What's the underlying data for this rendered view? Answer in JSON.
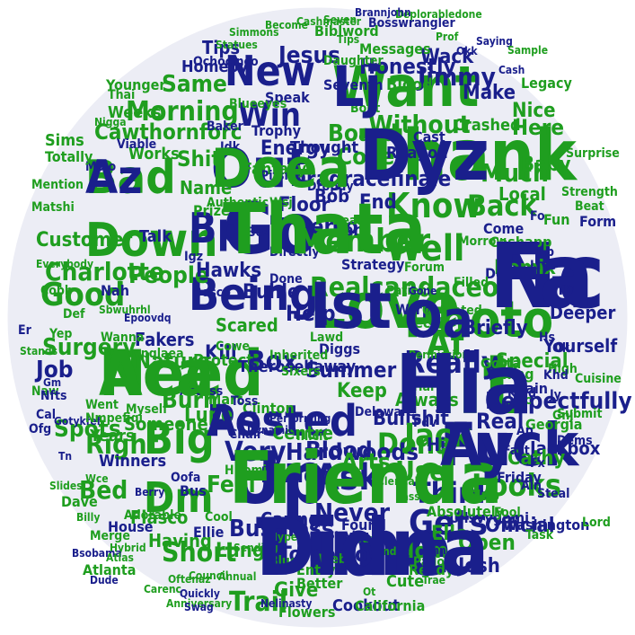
{
  "colors": {
    "background": "#ffffff",
    "disc": "#ecedf5",
    "green": "#1f9e1f",
    "blue": "#1a1f8c",
    "light_green": "#37a837",
    "light_blue": "#2b3296"
  },
  "words": [
    {
      "text": "Thank",
      "color": "green"
    },
    {
      "text": "Want",
      "color": "green"
    },
    {
      "text": "Love",
      "color": "green"
    },
    {
      "text": "Hit",
      "color": "green"
    },
    {
      "text": "Need",
      "color": "green"
    },
    {
      "text": "Time",
      "color": "blue"
    },
    {
      "text": "Up",
      "color": "blue"
    },
    {
      "text": "Go",
      "color": "blue"
    },
    {
      "text": "Out",
      "color": "blue"
    },
    {
      "text": "Nc",
      "color": "blue"
    },
    {
      "text": "Photo",
      "color": "green"
    },
    {
      "text": "Fuck",
      "color": "blue"
    },
    {
      "text": "Posted",
      "color": "blue"
    },
    {
      "text": "Bad",
      "color": "green"
    },
    {
      "text": "Down",
      "color": "green"
    },
    {
      "text": "Being",
      "color": "blue"
    },
    {
      "text": "Big",
      "color": "green"
    },
    {
      "text": "Dm",
      "color": "green"
    },
    {
      "text": "New",
      "color": "blue"
    },
    {
      "text": "Win",
      "color": "blue"
    },
    {
      "text": "Know",
      "color": "green"
    },
    {
      "text": "Member",
      "color": "green"
    },
    {
      "text": "Well",
      "color": "green"
    },
    {
      "text": "Back",
      "color": "green"
    },
    {
      "text": "Gets",
      "color": "blue"
    },
    {
      "text": "Ask",
      "color": "blue"
    },
    {
      "text": "Looks",
      "color": "green"
    },
    {
      "text": "Really",
      "color": "blue"
    },
    {
      "text": "Good",
      "color": "green"
    },
    {
      "text": "Charlotte",
      "color": "green"
    },
    {
      "text": "Morning",
      "color": "green"
    },
    {
      "text": "Jimmy",
      "color": "blue"
    },
    {
      "text": "Realcandaceo",
      "color": "green"
    },
    {
      "text": "Bp",
      "color": "blue"
    },
    {
      "text": "Job",
      "color": "blue"
    },
    {
      "text": "Box",
      "color": "blue"
    },
    {
      "text": "Think",
      "color": "blue"
    },
    {
      "text": "Use",
      "color": "green"
    },
    {
      "text": "Never",
      "color": "blue"
    },
    {
      "text": "Dona",
      "color": "green"
    },
    {
      "text": "Af",
      "color": "green"
    },
    {
      "text": "Very",
      "color": "blue"
    },
    {
      "text": "Short",
      "color": "green"
    },
    {
      "text": "Right",
      "color": "green"
    },
    {
      "text": "Bed",
      "color": "green"
    },
    {
      "text": "Trail",
      "color": "green"
    },
    {
      "text": "Tomorrow",
      "color": "blue"
    },
    {
      "text": "Without",
      "color": "green"
    },
    {
      "text": "Here",
      "color": "green"
    },
    {
      "text": "Much",
      "color": "green"
    },
    {
      "text": "Cove",
      "color": "green"
    },
    {
      "text": "Board",
      "color": "green"
    },
    {
      "text": "Same",
      "color": "green"
    },
    {
      "text": "Cawthornforc",
      "color": "green"
    },
    {
      "text": "People",
      "color": "green"
    },
    {
      "text": "Nature",
      "color": "green"
    },
    {
      "text": "Surgery",
      "color": "green"
    },
    {
      "text": "Hawks",
      "color": "blue"
    },
    {
      "text": "Buhle",
      "color": "blue"
    },
    {
      "text": "Business",
      "color": "blue"
    },
    {
      "text": "Hardwoods",
      "color": "blue"
    },
    {
      "text": "Bullshit",
      "color": "blue"
    },
    {
      "text": "Respectfully",
      "color": "blue"
    },
    {
      "text": "Open",
      "color": "green"
    },
    {
      "text": "Energy",
      "color": "blue"
    },
    {
      "text": "Jesus",
      "color": "blue"
    },
    {
      "text": "Honestly",
      "color": "blue"
    },
    {
      "text": "Make",
      "color": "blue"
    },
    {
      "text": "Wack",
      "color": "blue"
    },
    {
      "text": "Tips",
      "color": "blue"
    },
    {
      "text": "Shit",
      "color": "green"
    },
    {
      "text": "Works",
      "color": "green"
    },
    {
      "text": "Floor",
      "color": "blue"
    },
    {
      "text": "Person",
      "color": "blue"
    },
    {
      "text": "Help",
      "color": "blue"
    },
    {
      "text": "Scared",
      "color": "green"
    },
    {
      "text": "Fakers",
      "color": "blue"
    },
    {
      "text": "Feel",
      "color": "green"
    },
    {
      "text": "Burn",
      "color": "green"
    },
    {
      "text": "Someone",
      "color": "green"
    },
    {
      "text": "Spots",
      "color": "green"
    },
    {
      "text": "Daddy",
      "color": "blue"
    },
    {
      "text": "Blood",
      "color": "blue"
    },
    {
      "text": "Centre",
      "color": "green"
    },
    {
      "text": "Lungs",
      "color": "green"
    },
    {
      "text": "Mom",
      "color": "green"
    },
    {
      "text": "Elle",
      "color": "green"
    },
    {
      "text": "Josh",
      "color": "blue"
    },
    {
      "text": "Jackbox",
      "color": "blue"
    },
    {
      "text": "Cathy",
      "color": "green"
    },
    {
      "text": "Real",
      "color": "blue"
    },
    {
      "text": "Yourself",
      "color": "blue"
    },
    {
      "text": "Remix",
      "color": "green"
    },
    {
      "text": "Local",
      "color": "green"
    },
    {
      "text": "Baby",
      "color": "green"
    },
    {
      "text": "Nice",
      "color": "green"
    },
    {
      "text": "Name",
      "color": "green"
    },
    {
      "text": "Lupe",
      "color": "green"
    },
    {
      "text": "Fiasco",
      "color": "green"
    },
    {
      "text": "Having",
      "color": "green"
    },
    {
      "text": "Caring",
      "color": "blue"
    },
    {
      "text": "Give",
      "color": "green"
    },
    {
      "text": "Summer",
      "color": "blue"
    },
    {
      "text": "Keep",
      "color": "green"
    },
    {
      "text": "Always",
      "color": "green"
    },
    {
      "text": "Jack",
      "color": "green"
    },
    {
      "text": "Hi",
      "color": "blue"
    },
    {
      "text": "Arts",
      "color": "green"
    },
    {
      "text": "Official",
      "color": "blue"
    },
    {
      "text": "Kill",
      "color": "blue"
    },
    {
      "text": "Dragracefinale",
      "color": "blue"
    },
    {
      "text": "Bob",
      "color": "blue"
    },
    {
      "text": "End",
      "color": "blue"
    },
    {
      "text": "Briefly",
      "color": "blue"
    },
    {
      "text": "Special",
      "color": "green"
    },
    {
      "text": "Deeper",
      "color": "blue"
    },
    {
      "text": "Dnb",
      "color": "blue"
    },
    {
      "text": "Talk",
      "color": "blue"
    },
    {
      "text": "Customer",
      "color": "green"
    },
    {
      "text": "Prize",
      "color": "green"
    },
    {
      "text": "Fantasy",
      "color": "green"
    },
    {
      "text": "Speak",
      "color": "blue"
    },
    {
      "text": "Trophy",
      "color": "blue"
    },
    {
      "text": "Thought",
      "color": "blue"
    },
    {
      "text": "Ben",
      "color": "blue"
    },
    {
      "text": "Bout",
      "color": "green"
    },
    {
      "text": "Messages",
      "color": "green"
    },
    {
      "text": "Bosswrangler",
      "color": "blue"
    },
    {
      "text": "Biblword",
      "color": "green"
    },
    {
      "text": "Homeoy",
      "color": "blue"
    },
    {
      "text": "Legacy",
      "color": "green"
    },
    {
      "text": "Weeks",
      "color": "green"
    },
    {
      "text": "Sims",
      "color": "green"
    },
    {
      "text": "Younger",
      "color": "green"
    },
    {
      "text": "Protect",
      "color": "green"
    },
    {
      "text": "Therosellaway",
      "color": "blue"
    },
    {
      "text": "Atlanta",
      "color": "green"
    },
    {
      "text": "House",
      "color": "blue"
    },
    {
      "text": "Adorable",
      "color": "green"
    },
    {
      "text": "Winners",
      "color": "blue"
    },
    {
      "text": "Years",
      "color": "green"
    },
    {
      "text": "Dave",
      "color": "green"
    },
    {
      "text": "Flowers",
      "color": "green"
    },
    {
      "text": "Cookout",
      "color": "blue"
    },
    {
      "text": "California",
      "color": "green"
    },
    {
      "text": "Cute",
      "color": "green"
    },
    {
      "text": "Ready",
      "color": "green"
    },
    {
      "text": "Uilsvygomi",
      "color": "blue"
    },
    {
      "text": "Absolutely",
      "color": "green"
    },
    {
      "text": "Found",
      "color": "blue"
    },
    {
      "text": "Clinton",
      "color": "green"
    },
    {
      "text": "Authentic",
      "color": "green"
    },
    {
      "text": "Strategy",
      "color": "blue"
    },
    {
      "text": "Patient",
      "color": "green"
    },
    {
      "text": "Forum",
      "color": "green"
    },
    {
      "text": "Debt",
      "color": "blue"
    },
    {
      "text": "Fun",
      "color": "green"
    },
    {
      "text": "Gone",
      "color": "blue"
    },
    {
      "text": "Strength",
      "color": "green"
    },
    {
      "text": "Surprise",
      "color": "green"
    },
    {
      "text": "Beat",
      "color": "green"
    },
    {
      "text": "Form",
      "color": "blue"
    },
    {
      "text": "Submit",
      "color": "green"
    },
    {
      "text": "Georgia",
      "color": "green"
    },
    {
      "text": "Cuisine",
      "color": "green"
    },
    {
      "text": "Dems",
      "color": "blue"
    },
    {
      "text": "Fact",
      "color": "blue"
    },
    {
      "text": "Friday",
      "color": "blue"
    },
    {
      "text": "Steal",
      "color": "blue"
    },
    {
      "text": "Washington",
      "color": "blue"
    },
    {
      "text": "Task",
      "color": "green"
    },
    {
      "text": "Lord",
      "color": "green"
    },
    {
      "text": "Padoo",
      "color": "green"
    },
    {
      "text": "Club",
      "color": "green"
    },
    {
      "text": "Fool",
      "color": "green"
    },
    {
      "text": "Fixing",
      "color": "green"
    },
    {
      "text": "Kind",
      "color": "blue"
    },
    {
      "text": "Lost",
      "color": "blue"
    },
    {
      "text": "Pain",
      "color": "blue"
    },
    {
      "text": "Gotta",
      "color": "green"
    },
    {
      "text": "Delaware",
      "color": "blue"
    },
    {
      "text": "Permission",
      "color": "green"
    },
    {
      "text": "Recall",
      "color": "green"
    },
    {
      "text": "Wtrpa",
      "color": "blue"
    },
    {
      "text": "Lawd",
      "color": "green"
    },
    {
      "text": "Diggs",
      "color": "blue"
    },
    {
      "text": "Sixers",
      "color": "green"
    },
    {
      "text": "Better",
      "color": "green"
    },
    {
      "text": "Entry",
      "color": "green"
    },
    {
      "text": "Blue",
      "color": "green"
    },
    {
      "text": "Web",
      "color": "green"
    },
    {
      "text": "Ellie",
      "color": "blue"
    },
    {
      "text": "Bus",
      "color": "blue"
    },
    {
      "text": "Cool",
      "color": "green"
    },
    {
      "text": "Mart",
      "color": "green"
    },
    {
      "text": "Hitomi",
      "color": "green"
    },
    {
      "text": "Toss",
      "color": "blue"
    },
    {
      "text": "Chair",
      "color": "blue"
    },
    {
      "text": "Wanna",
      "color": "green"
    },
    {
      "text": "Oofa",
      "color": "blue"
    },
    {
      "text": "Nah",
      "color": "blue"
    },
    {
      "text": "Igz",
      "color": "blue"
    },
    {
      "text": "Bosco",
      "color": "blue"
    },
    {
      "text": "Boz",
      "color": "blue"
    },
    {
      "text": "Deal",
      "color": "green"
    },
    {
      "text": "Find",
      "color": "blue"
    },
    {
      "text": "Idk",
      "color": "blue"
    },
    {
      "text": "Baker",
      "color": "blue"
    },
    {
      "text": "Blueeyes",
      "color": "green"
    },
    {
      "text": "Ochocinco",
      "color": "blue"
    },
    {
      "text": "Thai",
      "color": "green"
    },
    {
      "text": "Nigga",
      "color": "green"
    },
    {
      "text": "Viable",
      "color": "blue"
    },
    {
      "text": "Mojo",
      "color": "blue"
    },
    {
      "text": "Matshi",
      "color": "green"
    },
    {
      "text": "Mention",
      "color": "green"
    },
    {
      "text": "Totally",
      "color": "green"
    },
    {
      "text": "Everybody",
      "color": "green"
    },
    {
      "text": "Cobb",
      "color": "green"
    },
    {
      "text": "Def",
      "color": "green"
    },
    {
      "text": "Yep",
      "color": "green"
    },
    {
      "text": "Sbwuhrhl",
      "color": "green"
    },
    {
      "text": "Epoovdq",
      "color": "blue"
    },
    {
      "text": "Dqdvpqlaea",
      "color": "green"
    },
    {
      "text": "Berry",
      "color": "blue"
    },
    {
      "text": "Merge",
      "color": "green"
    },
    {
      "text": "Hybrid",
      "color": "green"
    },
    {
      "text": "Bsobama",
      "color": "blue"
    },
    {
      "text": "Dude",
      "color": "blue"
    },
    {
      "text": "Oftenaz",
      "color": "green"
    },
    {
      "text": "Carenc",
      "color": "green"
    },
    {
      "text": "Anniversary",
      "color": "green"
    },
    {
      "text": "Quickly",
      "color": "blue"
    },
    {
      "text": "Swag",
      "color": "blue"
    },
    {
      "text": "Council",
      "color": "green"
    },
    {
      "text": "Sending",
      "color": "green"
    },
    {
      "text": "Annual",
      "color": "green"
    },
    {
      "text": "Hyped",
      "color": "green"
    },
    {
      "text": "Staying",
      "color": "blue"
    },
    {
      "text": "Uauj",
      "color": "green"
    },
    {
      "text": "Findom",
      "color": "green"
    },
    {
      "text": "Nelinasty",
      "color": "blue"
    },
    {
      "text": "Ot",
      "color": "green"
    },
    {
      "text": "Clerical",
      "color": "green"
    },
    {
      "text": "Pass",
      "color": "green"
    },
    {
      "text": "Zmn",
      "color": "blue"
    },
    {
      "text": "Trae",
      "color": "green"
    },
    {
      "text": "Performing",
      "color": "blue"
    },
    {
      "text": "Dynamic",
      "color": "blue"
    },
    {
      "text": "Deplorabledone",
      "color": "green"
    },
    {
      "text": "Okk",
      "color": "blue"
    },
    {
      "text": "Prof",
      "color": "green"
    },
    {
      "text": "Saying",
      "color": "blue"
    },
    {
      "text": "Sample",
      "color": "green"
    },
    {
      "text": "Cash",
      "color": "blue"
    },
    {
      "text": "Brannjohn",
      "color": "blue"
    },
    {
      "text": "Seven",
      "color": "green"
    },
    {
      "text": "Tips",
      "color": "green"
    },
    {
      "text": "Cashmaster",
      "color": "green"
    },
    {
      "text": "Become",
      "color": "green"
    },
    {
      "text": "Simmons",
      "color": "green"
    },
    {
      "text": "Statues",
      "color": "green"
    },
    {
      "text": "Daughter",
      "color": "green"
    },
    {
      "text": "Seventh",
      "color": "blue"
    },
    {
      "text": "Blood",
      "color": "green"
    },
    {
      "text": "Crashed",
      "color": "green"
    },
    {
      "text": "Reagon",
      "color": "blue"
    },
    {
      "text": "Cast",
      "color": "blue"
    },
    {
      "text": "Come",
      "color": "blue"
    },
    {
      "text": "Cashapp",
      "color": "green"
    },
    {
      "text": "Morrow",
      "color": "green"
    },
    {
      "text": "Filled",
      "color": "green"
    },
    {
      "text": "Live",
      "color": "blue"
    },
    {
      "text": "Tea",
      "color": "blue"
    },
    {
      "text": "Ok",
      "color": "blue"
    },
    {
      "text": "High",
      "color": "green"
    },
    {
      "text": "Sc",
      "color": "green"
    },
    {
      "text": "Gnj",
      "color": "green"
    },
    {
      "text": "Ap",
      "color": "blue"
    },
    {
      "text": "Er",
      "color": "blue"
    },
    {
      "text": "Naw",
      "color": "green"
    },
    {
      "text": "Cal",
      "color": "blue"
    },
    {
      "text": "Ofg",
      "color": "blue"
    },
    {
      "text": "Nfts",
      "color": "blue"
    },
    {
      "text": "Stands",
      "color": "green"
    },
    {
      "text": "Gm",
      "color": "blue"
    },
    {
      "text": "Gotykfef",
      "color": "blue"
    },
    {
      "text": "Tn",
      "color": "blue"
    },
    {
      "text": "Slides",
      "color": "green"
    },
    {
      "text": "Billy",
      "color": "green"
    },
    {
      "text": "Atlas",
      "color": "green"
    },
    {
      "text": "Wce",
      "color": "green"
    },
    {
      "text": "Wsj",
      "color": "green"
    },
    {
      "text": "Pifsnc",
      "color": "blue"
    },
    {
      "text": "Directly",
      "color": "blue"
    },
    {
      "text": "Done",
      "color": "blue"
    },
    {
      "text": "Dropdy",
      "color": "blue"
    },
    {
      "text": "Pdv",
      "color": "blue"
    },
    {
      "text": "Fo",
      "color": "blue"
    },
    {
      "text": "Lb",
      "color": "blue"
    },
    {
      "text": "Hs",
      "color": "blue"
    },
    {
      "text": "Khd",
      "color": "blue"
    },
    {
      "text": "Jy",
      "color": "blue"
    },
    {
      "text": "Fx",
      "color": "blue"
    },
    {
      "text": "Ain",
      "color": "blue"
    },
    {
      "text": "Inherited",
      "color": "green"
    },
    {
      "text": "Illicit",
      "color": "green"
    },
    {
      "text": "Harry",
      "color": "green"
    },
    {
      "text": "Outdated",
      "color": "green"
    },
    {
      "text": "Cowe",
      "color": "green"
    },
    {
      "text": "Access",
      "color": "blue"
    },
    {
      "text": "Myself",
      "color": "green"
    },
    {
      "text": "Went",
      "color": "green"
    },
    {
      "text": "Nmpefiqi",
      "color": "green"
    },
    {
      "text": "Dyz",
      "color": "blue"
    },
    {
      "text": "Lj",
      "color": "blue"
    },
    {
      "text": "Ist",
      "color": "blue"
    },
    {
      "text": "Hia",
      "color": "blue"
    },
    {
      "text": "Aca",
      "color": "green"
    },
    {
      "text": "Didna",
      "color": "blue"
    },
    {
      "text": "Friendа",
      "color": "green"
    },
    {
      "text": "Thata",
      "color": "green"
    },
    {
      "text": "Doea",
      "color": "green"
    },
    {
      "text": "Fa",
      "color": "blue"
    },
    {
      "text": "Oa",
      "color": "blue"
    },
    {
      "text": "Ay",
      "color": "blue"
    },
    {
      "text": "As",
      "color": "blue"
    },
    {
      "text": "Az",
      "color": "blue"
    }
  ]
}
